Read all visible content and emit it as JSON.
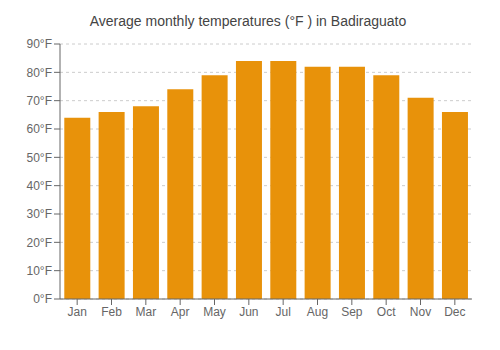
{
  "chart_data": {
    "type": "bar",
    "title": "Average monthly temperatures (°F ) in Badiraguato",
    "categories": [
      "Jan",
      "Feb",
      "Mar",
      "Apr",
      "May",
      "Jun",
      "Jul",
      "Aug",
      "Sep",
      "Oct",
      "Nov",
      "Dec"
    ],
    "values": [
      64,
      66,
      68,
      74,
      79,
      84,
      84,
      82,
      82,
      79,
      71,
      66
    ],
    "color": "#E8920A",
    "ylim": [
      0,
      90
    ],
    "yticks": [
      {
        "value": 0,
        "label": "0°F"
      },
      {
        "value": 10,
        "label": "10°F"
      },
      {
        "value": 20,
        "label": "20°F"
      },
      {
        "value": 30,
        "label": "30°F"
      },
      {
        "value": 40,
        "label": "40°F"
      },
      {
        "value": 50,
        "label": "50°F"
      },
      {
        "value": 60,
        "label": "60°F"
      },
      {
        "value": 70,
        "label": "70°F"
      },
      {
        "value": 80,
        "label": "80°F"
      },
      {
        "value": 90,
        "label": "90°F"
      }
    ],
    "grid": true
  }
}
